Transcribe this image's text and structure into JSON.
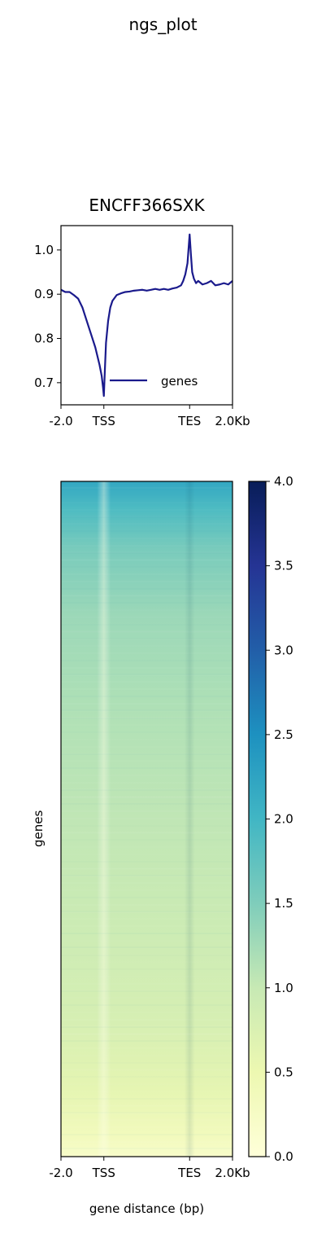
{
  "suptitle": "ngs_plot",
  "chart_data": [
    {
      "type": "line",
      "title": "ENCFF366SXK",
      "xlabel": "",
      "ylabel": "",
      "x_tick_labels": [
        "-2.0",
        "TSS",
        "TES",
        "2.0Kb"
      ],
      "x_tick_positions": [
        0,
        1,
        3,
        4
      ],
      "y_ticks": [
        0.7,
        0.8,
        0.9,
        1.0
      ],
      "ylim": [
        0.65,
        1.055
      ],
      "xlim": [
        0,
        4
      ],
      "grid": false,
      "legend_position": "lower-right",
      "series": [
        {
          "name": "genes",
          "color": "#1a1a8c",
          "x": [
            0,
            0.1,
            0.2,
            0.3,
            0.4,
            0.5,
            0.6,
            0.7,
            0.8,
            0.85,
            0.9,
            0.95,
            0.98,
            1.0,
            1.02,
            1.05,
            1.1,
            1.15,
            1.2,
            1.3,
            1.4,
            1.5,
            1.6,
            1.7,
            1.8,
            1.9,
            2.0,
            2.1,
            2.2,
            2.3,
            2.4,
            2.5,
            2.6,
            2.7,
            2.8,
            2.85,
            2.9,
            2.95,
            3.0,
            3.03,
            3.06,
            3.1,
            3.15,
            3.2,
            3.3,
            3.4,
            3.5,
            3.6,
            3.7,
            3.8,
            3.9,
            4.0
          ],
          "y": [
            0.91,
            0.905,
            0.905,
            0.898,
            0.89,
            0.87,
            0.84,
            0.81,
            0.78,
            0.76,
            0.74,
            0.715,
            0.69,
            0.67,
            0.72,
            0.79,
            0.84,
            0.87,
            0.885,
            0.898,
            0.902,
            0.905,
            0.906,
            0.908,
            0.909,
            0.91,
            0.908,
            0.91,
            0.912,
            0.91,
            0.912,
            0.91,
            0.913,
            0.915,
            0.92,
            0.93,
            0.945,
            0.97,
            1.035,
            0.99,
            0.95,
            0.935,
            0.925,
            0.93,
            0.922,
            0.925,
            0.93,
            0.92,
            0.922,
            0.925,
            0.922,
            0.93
          ]
        }
      ]
    },
    {
      "type": "heatmap",
      "title": "",
      "xlabel": "gene distance (bp)",
      "ylabel": "genes",
      "x_tick_labels": [
        "-2.0",
        "TSS",
        "TES",
        "2.0Kb"
      ],
      "x_tick_positions": [
        0,
        1,
        3,
        4
      ],
      "xlim": [
        0,
        4
      ],
      "colorbar": {
        "ticks": [
          0.0,
          0.5,
          1.0,
          1.5,
          2.0,
          2.5,
          3.0,
          3.5,
          4.0
        ],
        "tick_labels": [
          "0.0",
          "0.5",
          "1.0",
          "1.5",
          "2.0",
          "2.5",
          "3.0",
          "3.5",
          "4.0"
        ],
        "range": [
          0,
          4
        ],
        "colormap": "YlGnBu",
        "stops": [
          "#ffffd9",
          "#edf8b1",
          "#c7e9b4",
          "#7fcdbb",
          "#41b6c4",
          "#1d91c0",
          "#225ea8",
          "#253494",
          "#081d58"
        ]
      },
      "row_profile": {
        "fraction": [
          0,
          0.04,
          0.1,
          0.2,
          0.35,
          0.5,
          0.65,
          0.8,
          0.9,
          0.97,
          1.0
        ],
        "value": [
          2.2,
          1.9,
          1.55,
          1.3,
          1.15,
          1.05,
          0.95,
          0.8,
          0.6,
          0.35,
          0.2
        ]
      },
      "tss_dip": 0.25,
      "tes_bump": 0.1
    }
  ]
}
